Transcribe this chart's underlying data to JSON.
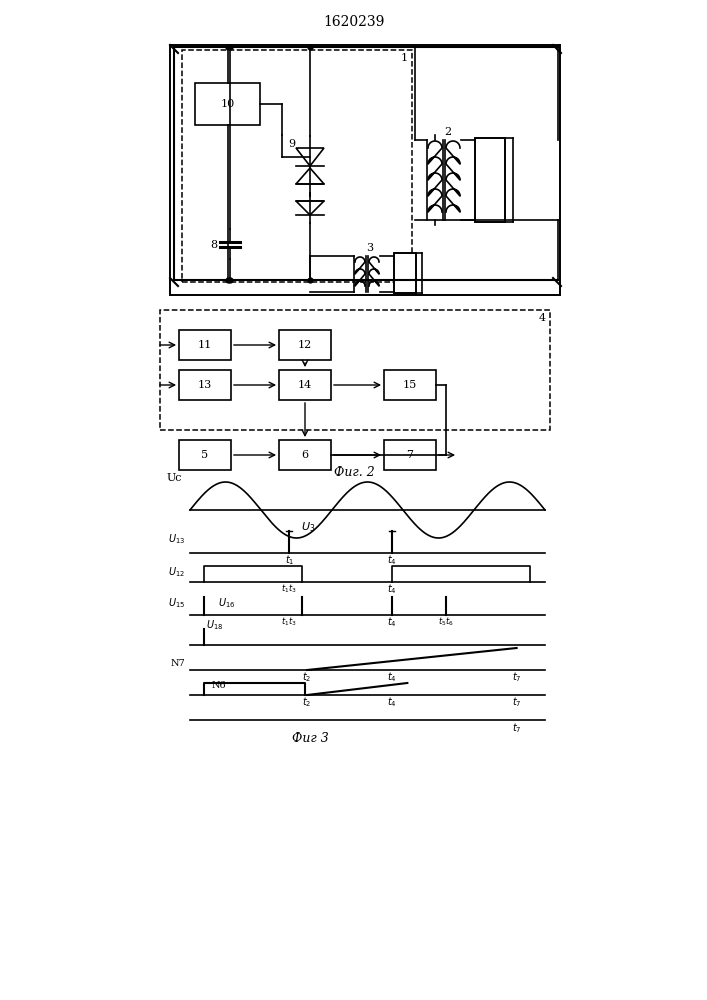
{
  "title": "1620239",
  "fig2_label": "Фиг. 2",
  "fig3_label": "Фиг 3",
  "bg_color": "#ffffff",
  "line_color": "#000000",
  "fig_width": 7.07,
  "fig_height": 10.0
}
